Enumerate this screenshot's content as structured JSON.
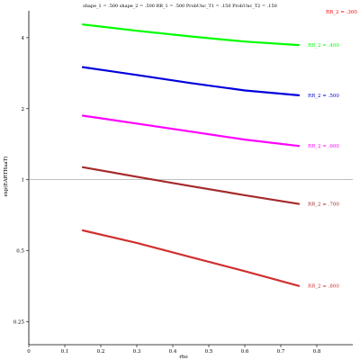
{
  "chart_data": {
    "type": "line",
    "title": "shape_1 = .500  shape_2 = .500  RR_1 = .500  ProbUnc_T1 = .150  ProbUnc_T2 = .150",
    "xlabel": "rho",
    "ylabel": "exp(EARTHaaT)",
    "x_scale": "linear",
    "y_scale": "log",
    "xlim": [
      0,
      0.9
    ],
    "ylim": [
      0.2,
      5.2
    ],
    "x_ticks": [
      0,
      0.1,
      0.2,
      0.3,
      0.4,
      0.5,
      0.6,
      0.7,
      0.8
    ],
    "x_tick_labels": [
      "0",
      "0.1",
      "0.2",
      "0.3",
      "0.4",
      "0.5",
      "0.6",
      "0.7",
      "0.8"
    ],
    "y_ticks": [
      0.25,
      0.5,
      1,
      2,
      4
    ],
    "y_tick_labels": [
      "0.25",
      "0.5",
      "1",
      "2",
      "4"
    ],
    "reference_line_y": 1,
    "grid": false,
    "legend": "direct labels at top-right corner and at right end of each line",
    "series": [
      {
        "name": "RR_2 = .300",
        "color": "#ff0000",
        "x": [],
        "y": []
      },
      {
        "name": "RR_2 = .400",
        "color": "#00ff00",
        "x": [
          0.15,
          0.3,
          0.45,
          0.6,
          0.75
        ],
        "y": [
          4.55,
          4.28,
          4.05,
          3.85,
          3.72
        ]
      },
      {
        "name": "RR_2 = .500",
        "color": "#0000dd",
        "x": [
          0.15,
          0.3,
          0.45,
          0.6,
          0.75
        ],
        "y": [
          3.0,
          2.78,
          2.57,
          2.39,
          2.28
        ]
      },
      {
        "name": "RR_2 = .600",
        "color": "#ff00ff",
        "x": [
          0.15,
          0.3,
          0.45,
          0.6,
          0.75
        ],
        "y": [
          1.87,
          1.73,
          1.6,
          1.48,
          1.39
        ]
      },
      {
        "name": "RR_2 = .700",
        "color": "#a52a2a",
        "x": [
          0.15,
          0.3,
          0.45,
          0.6,
          0.75
        ],
        "y": [
          1.13,
          1.03,
          0.94,
          0.86,
          0.79
        ]
      },
      {
        "name": "RR_2 = .800",
        "color": "#d03030",
        "x": [
          0.15,
          0.3,
          0.45,
          0.6,
          0.75
        ],
        "y": [
          0.61,
          0.54,
          0.47,
          0.41,
          0.355
        ]
      }
    ]
  }
}
